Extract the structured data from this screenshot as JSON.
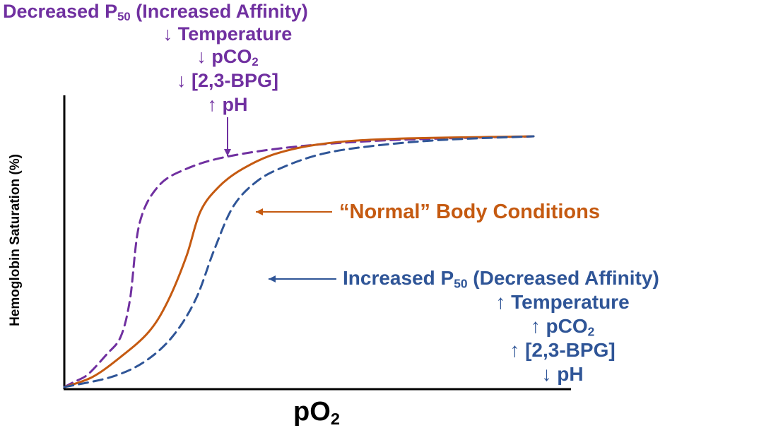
{
  "chart_data": {
    "type": "line",
    "xlabel": "pO",
    "xlabel_sub": "2",
    "ylabel": "Hemoglobin Saturation (%)",
    "grid": false,
    "legend": "none",
    "series": [
      {
        "key": "left",
        "color": "#7030a0",
        "dash": true,
        "x": [
          0,
          0.02,
          0.05,
          0.09,
          0.12,
          0.14,
          0.16,
          0.2,
          0.26,
          0.35,
          0.5,
          0.7,
          1.0
        ],
        "y": [
          0,
          0.02,
          0.05,
          0.13,
          0.2,
          0.35,
          0.65,
          0.8,
          0.87,
          0.92,
          0.96,
          0.985,
          1.0
        ]
      },
      {
        "key": "normal",
        "color": "#c55a11",
        "dash": false,
        "x": [
          0,
          0.06,
          0.12,
          0.18,
          0.22,
          0.26,
          0.29,
          0.33,
          0.38,
          0.45,
          0.55,
          0.7,
          1.0
        ],
        "y": [
          0,
          0.04,
          0.12,
          0.22,
          0.34,
          0.52,
          0.7,
          0.8,
          0.87,
          0.93,
          0.97,
          0.99,
          1.0
        ]
      },
      {
        "key": "right",
        "color": "#2f5597",
        "dash": true,
        "x": [
          0,
          0.1,
          0.17,
          0.23,
          0.28,
          0.32,
          0.36,
          0.41,
          0.47,
          0.55,
          0.65,
          0.8,
          1.0
        ],
        "y": [
          0,
          0.04,
          0.1,
          0.2,
          0.35,
          0.55,
          0.72,
          0.82,
          0.88,
          0.93,
          0.96,
          0.985,
          1.0
        ]
      }
    ],
    "annotations": {
      "left": {
        "color": "#7030a0",
        "lines": [
          {
            "pre": "Decreased P",
            "sub": "50",
            "post": " (Increased Affinity)"
          },
          {
            "pre": "↓ Temperature"
          },
          {
            "pre": "↓ pCO",
            "sub": "2"
          },
          {
            "pre": "↓ [2,3-BPG]"
          },
          {
            "pre": "↑ pH"
          }
        ]
      },
      "normal": {
        "color": "#c55a11",
        "lines": [
          {
            "pre": "“Normal” Body Conditions"
          }
        ]
      },
      "right": {
        "color": "#2f5597",
        "lines": [
          {
            "pre": "Increased P",
            "sub": "50",
            "post": " (Decreased Affinity)"
          },
          {
            "pre": "↑ Temperature"
          },
          {
            "pre": "↑ pCO",
            "sub": "2"
          },
          {
            "pre": "↑ [2,3-BPG]"
          },
          {
            "pre": "↓ pH"
          }
        ]
      }
    }
  }
}
